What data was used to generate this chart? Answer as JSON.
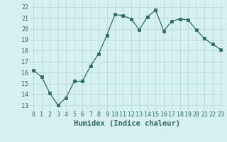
{
  "x": [
    0,
    1,
    2,
    3,
    4,
    5,
    6,
    7,
    8,
    9,
    10,
    11,
    12,
    13,
    14,
    15,
    16,
    17,
    18,
    19,
    20,
    21,
    22,
    23
  ],
  "y": [
    16.2,
    15.6,
    14.1,
    13.0,
    13.7,
    15.2,
    15.2,
    16.6,
    17.7,
    19.4,
    21.3,
    21.2,
    20.9,
    19.9,
    21.1,
    21.7,
    19.8,
    20.7,
    20.9,
    20.8,
    19.9,
    19.1,
    18.6,
    18.1
  ],
  "line_color": "#2e6b5e",
  "marker_color": "#2e6b5e",
  "bg_color": "#d6f0ef",
  "grid_color": "#b8dada",
  "xlabel": "Humidex (Indice chaleur)",
  "ylim": [
    12.5,
    22.5
  ],
  "xlim": [
    -0.5,
    23.5
  ],
  "yticks": [
    13,
    14,
    15,
    16,
    17,
    18,
    19,
    20,
    21,
    22
  ],
  "xticks": [
    0,
    1,
    2,
    3,
    4,
    5,
    6,
    7,
    8,
    9,
    10,
    11,
    12,
    13,
    14,
    15,
    16,
    17,
    18,
    19,
    20,
    21,
    22,
    23
  ],
  "tick_fontsize": 6.0,
  "label_fontsize": 7.5
}
